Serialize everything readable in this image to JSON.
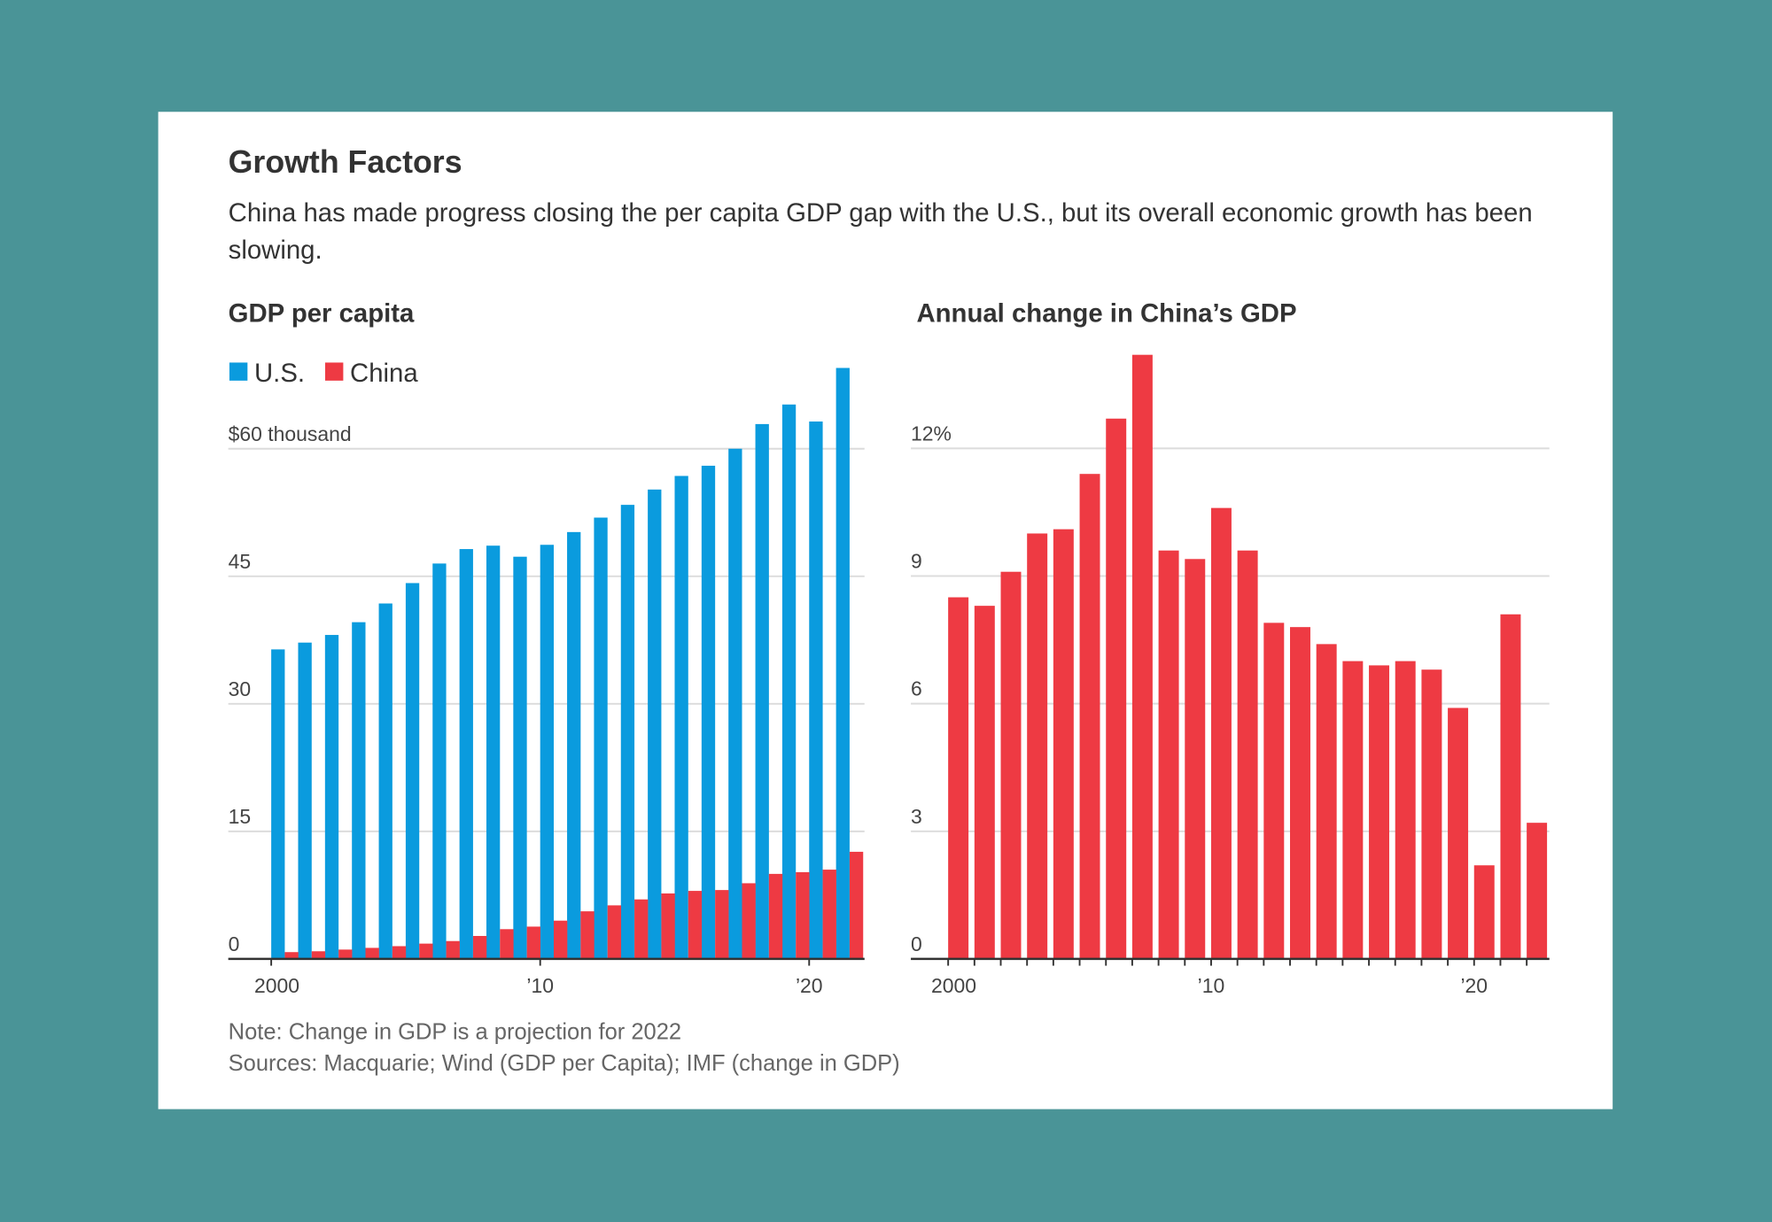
{
  "title": "Growth Factors",
  "subtitle": "China has made progress closing the per capita GDP gap with the U.S., but its overall economic growth has been slowing.",
  "note": "Note: Change in GDP is a projection for 2022",
  "sources": "Sources: Macquarie; Wind (GDP per Capita); IMF (change in GDP)",
  "chart_data": [
    {
      "type": "bar",
      "title": "GDP per capita",
      "categories": [
        "2000",
        null,
        null,
        null,
        null,
        null,
        null,
        null,
        null,
        null,
        "’10",
        null,
        null,
        null,
        null,
        null,
        null,
        null,
        null,
        null,
        "’20",
        null
      ],
      "series": [
        {
          "name": "U.S.",
          "color": "#0a9bde",
          "values": [
            36.4,
            37.2,
            38.1,
            39.6,
            41.8,
            44.2,
            46.5,
            48.2,
            48.6,
            47.3,
            48.7,
            50.2,
            51.9,
            53.4,
            55.2,
            56.8,
            58.0,
            60.0,
            62.9,
            65.2,
            63.2,
            69.5
          ]
        },
        {
          "name": "China",
          "color": "#ee3a43",
          "values": [
            0.8,
            0.9,
            1.1,
            1.3,
            1.5,
            1.8,
            2.1,
            2.7,
            3.5,
            3.8,
            4.5,
            5.6,
            6.3,
            7.0,
            7.7,
            8.0,
            8.1,
            8.9,
            10.0,
            10.2,
            10.5,
            12.6
          ]
        }
      ],
      "ylim": [
        0,
        70
      ],
      "yticks": [
        0,
        15,
        30,
        45,
        {
          "value": 60,
          "label": "$60 thousand"
        }
      ],
      "grid": true,
      "legend": "top-left"
    },
    {
      "type": "bar",
      "title": "Annual change in China’s GDP",
      "categories": [
        "2000",
        null,
        null,
        null,
        null,
        null,
        null,
        null,
        null,
        null,
        "’10",
        null,
        null,
        null,
        null,
        null,
        null,
        null,
        null,
        null,
        "’20",
        null,
        null
      ],
      "values": [
        8.5,
        8.3,
        9.1,
        10.0,
        10.1,
        11.4,
        12.7,
        14.2,
        9.6,
        9.4,
        10.6,
        9.6,
        7.9,
        7.8,
        7.4,
        7.0,
        6.9,
        7.0,
        6.8,
        5.9,
        2.2,
        8.1,
        3.2
      ],
      "color": "#ee3a43",
      "ylim": [
        0,
        15
      ],
      "yticks": [
        0,
        3,
        6,
        9,
        {
          "value": 12,
          "label": "12%"
        }
      ],
      "grid": true
    }
  ]
}
